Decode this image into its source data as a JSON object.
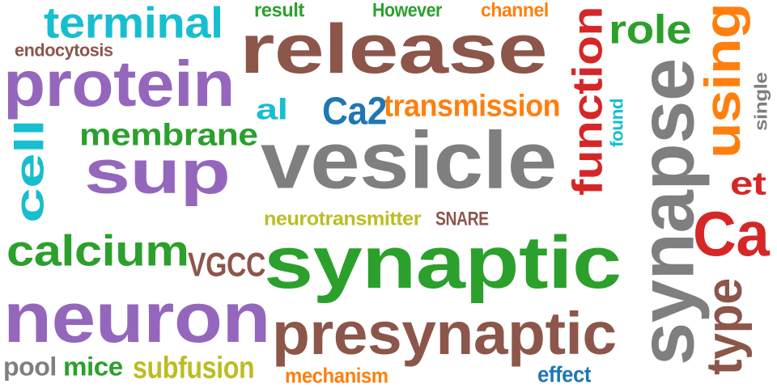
{
  "wordcloud": {
    "words": [
      {
        "text": "release",
        "color": "#8c564b"
      },
      {
        "text": "vesicle",
        "color": "#7f7f7f"
      },
      {
        "text": "synaptic",
        "color": "#2ca02c"
      },
      {
        "text": "neuron",
        "color": "#9467bd"
      },
      {
        "text": "protein",
        "color": "#9467bd"
      },
      {
        "text": "sup",
        "color": "#9467bd"
      },
      {
        "text": "synapse",
        "color": "#7f7f7f"
      },
      {
        "text": "presynaptic",
        "color": "#8c564b"
      },
      {
        "text": "terminal",
        "color": "#17becf"
      },
      {
        "text": "function",
        "color": "#d62728"
      },
      {
        "text": "using",
        "color": "#ff7f0e"
      },
      {
        "text": "Ca",
        "color": "#d62728"
      },
      {
        "text": "calcium",
        "color": "#2ca02c"
      },
      {
        "text": "cell",
        "color": "#17becf"
      },
      {
        "text": "role",
        "color": "#2ca02c"
      },
      {
        "text": "type",
        "color": "#8c564b"
      },
      {
        "text": "membrane",
        "color": "#2ca02c"
      },
      {
        "text": "transmission",
        "color": "#ff7f0e"
      },
      {
        "text": "Ca2",
        "color": "#1f77b4"
      },
      {
        "text": "al",
        "color": "#17becf"
      },
      {
        "text": "VGCC",
        "color": "#8c564b"
      },
      {
        "text": "et",
        "color": "#d62728"
      },
      {
        "text": "subfusion",
        "color": "#bcbd22"
      },
      {
        "text": "mice",
        "color": "#2ca02c"
      },
      {
        "text": "pool",
        "color": "#7f7f7f"
      },
      {
        "text": "endocytosis",
        "color": "#8c564b"
      },
      {
        "text": "neurotransmitter",
        "color": "#bcbd22"
      },
      {
        "text": "SNARE",
        "color": "#8c564b"
      },
      {
        "text": "mechanism",
        "color": "#ff7f0e"
      },
      {
        "text": "effect",
        "color": "#1f77b4"
      },
      {
        "text": "result",
        "color": "#2ca02c"
      },
      {
        "text": "However",
        "color": "#2ca02c"
      },
      {
        "text": "channel",
        "color": "#ff7f0e"
      },
      {
        "text": "found",
        "color": "#17becf"
      },
      {
        "text": "single",
        "color": "#7f7f7f"
      }
    ]
  }
}
